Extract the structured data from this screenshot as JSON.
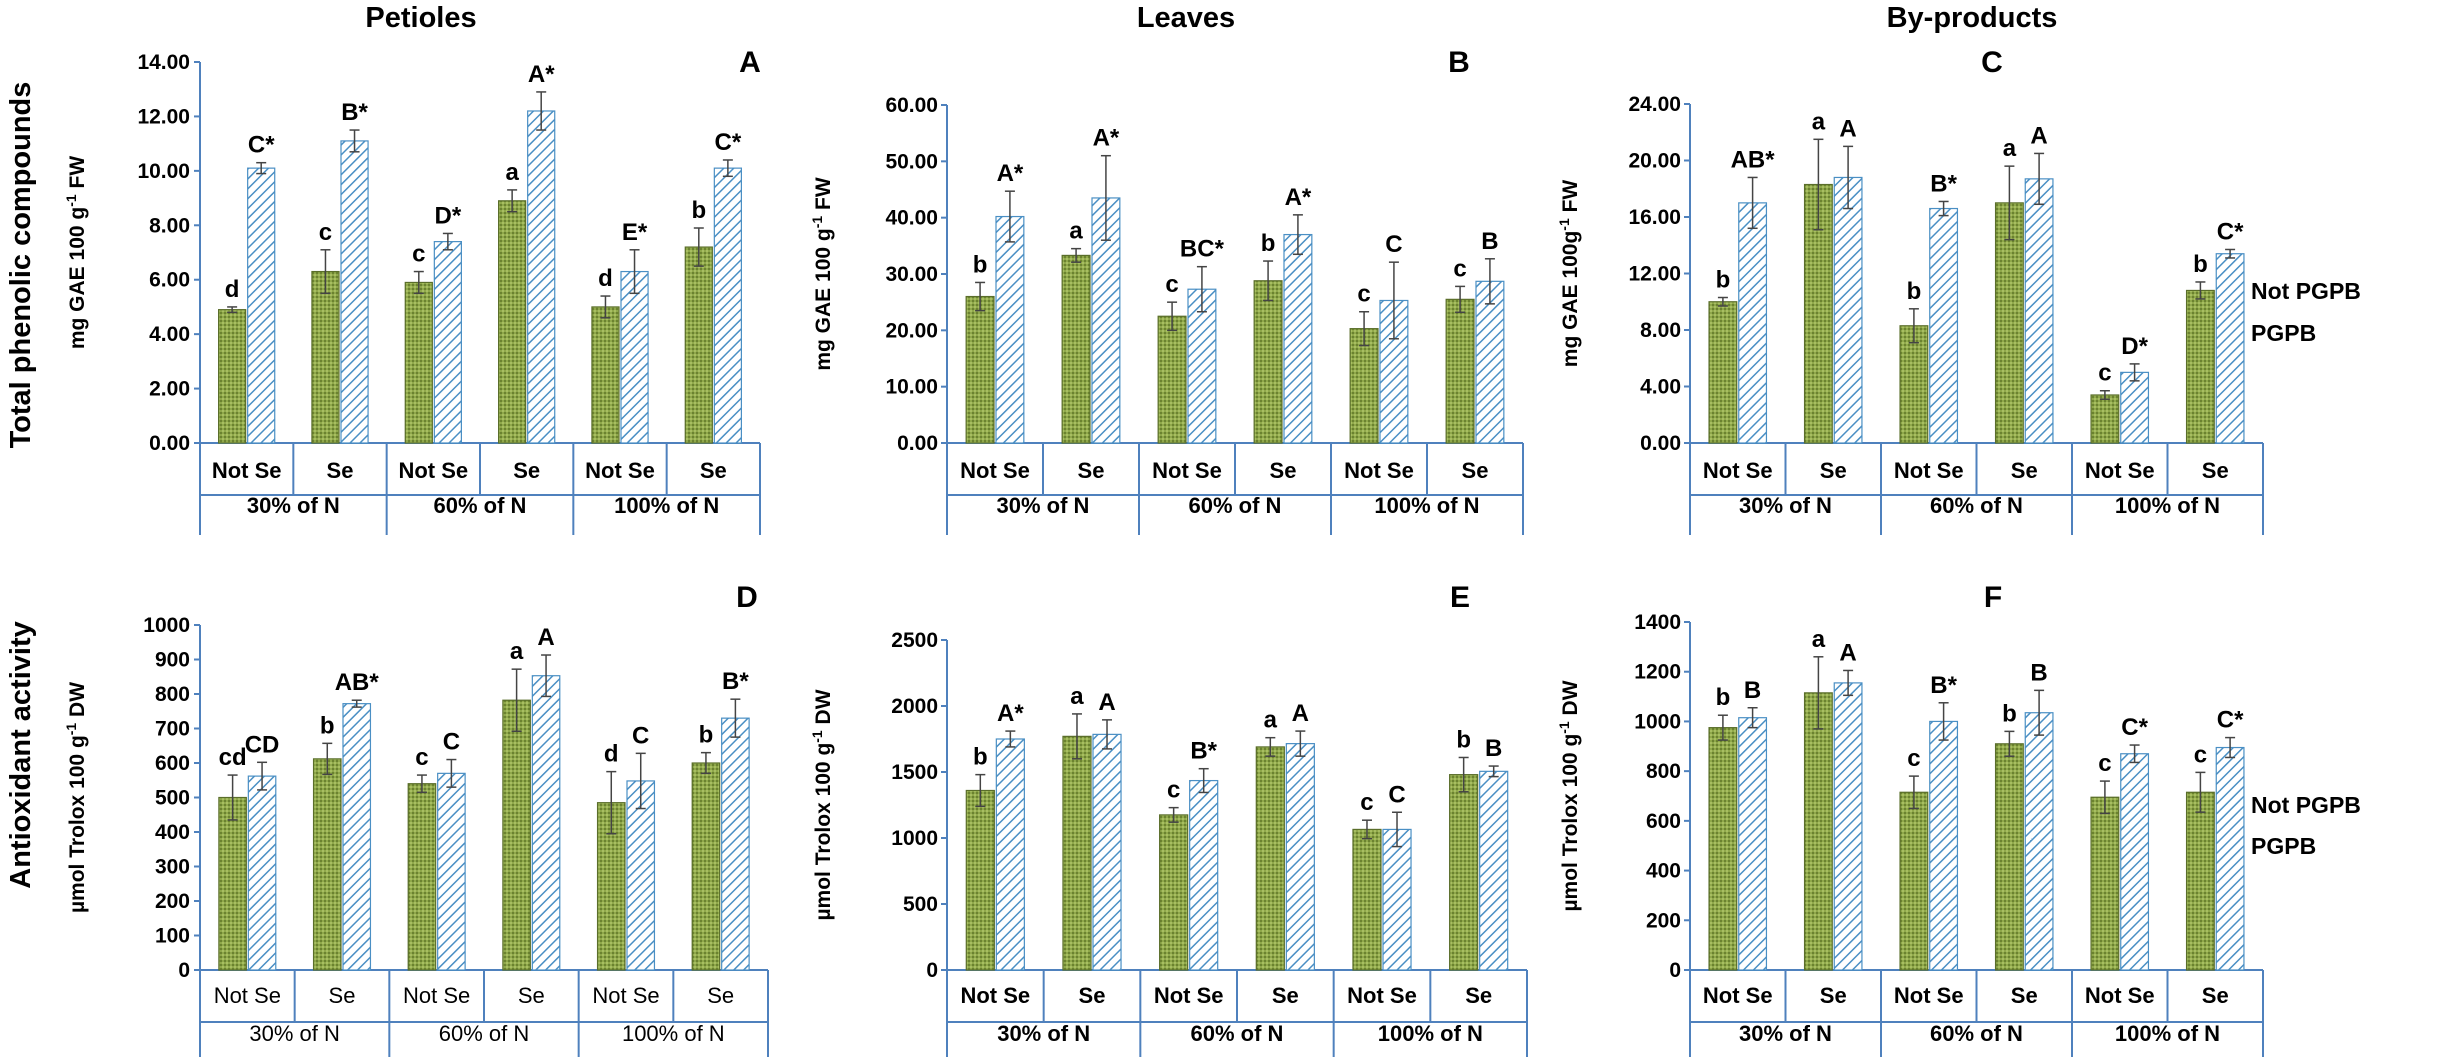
{
  "figure": {
    "column_titles": [
      "Petioles",
      "Leaves",
      "By-products"
    ],
    "row_titles": [
      "Total phenolic compounds",
      "Antioxidant activity"
    ],
    "colors": {
      "not_pgpb_fill": "#8fa84a",
      "not_pgpb_stroke": "#5a6e2a",
      "pgpb_fill": "#ffffff",
      "pgpb_stroke": "#4a8fc4",
      "axis": "#4f81bd"
    },
    "legends": [
      {
        "entries": [
          {
            "label": "Not PGPB",
            "pattern": "green-dots"
          },
          {
            "label": "PGPB",
            "pattern": "blue-hatch"
          }
        ]
      },
      {
        "entries": [
          {
            "label": "Not PGPB",
            "pattern": "green-dots"
          },
          {
            "label": "PGPB",
            "pattern": "blue-hatch"
          }
        ]
      }
    ]
  },
  "chart_data": [
    {
      "panel": "A",
      "type": "bar",
      "title": "Petioles",
      "ylabel_main": "mg GAE 100 g",
      "ylabel_sup": "-1",
      "ylabel_tail": " FW",
      "ylim": [
        0,
        14
      ],
      "yticks": [
        0,
        2,
        4,
        6,
        8,
        10,
        12,
        14
      ],
      "ytick_labels": [
        "0.00",
        "2.00",
        "4.00",
        "6.00",
        "8.00",
        "10.00",
        "12.00",
        "14.00"
      ],
      "categories": [
        "Not Se",
        "Se",
        "Not Se",
        "Se",
        "Not Se",
        "Se"
      ],
      "groups": [
        "30% of N",
        "60% of N",
        "100% of N"
      ],
      "series": [
        {
          "name": "Not PGPB",
          "values": [
            4.9,
            6.3,
            5.9,
            8.9,
            5.0,
            7.2
          ],
          "errors": [
            0.1,
            0.8,
            0.4,
            0.4,
            0.4,
            0.7
          ],
          "labels": [
            "d",
            "c",
            "c",
            "a",
            "d",
            "b"
          ]
        },
        {
          "name": "PGPB",
          "values": [
            10.1,
            11.1,
            7.4,
            12.2,
            6.3,
            10.1
          ],
          "errors": [
            0.2,
            0.4,
            0.3,
            0.7,
            0.8,
            0.3
          ],
          "labels": [
            "C*",
            "B*",
            "D*",
            "A*",
            "E*",
            "C*"
          ]
        }
      ]
    },
    {
      "panel": "B",
      "type": "bar",
      "title": "Leaves",
      "ylabel_main": "mg GAE 100 g",
      "ylabel_sup": "-1",
      "ylabel_tail": " FW",
      "ylim": [
        0,
        60
      ],
      "yticks": [
        0,
        10,
        20,
        30,
        40,
        50,
        60
      ],
      "ytick_labels": [
        "0.00",
        "10.00",
        "20.00",
        "30.00",
        "40.00",
        "50.00",
        "60.00"
      ],
      "categories": [
        "Not Se",
        "Se",
        "Not Se",
        "Se",
        "Not Se",
        "Se"
      ],
      "groups": [
        "30% of N",
        "60% of N",
        "100% of N"
      ],
      "series": [
        {
          "name": "Not PGPB",
          "values": [
            26.0,
            33.3,
            22.5,
            28.8,
            20.3,
            25.5
          ],
          "errors": [
            2.5,
            1.2,
            2.5,
            3.5,
            3.0,
            2.3
          ],
          "labels": [
            "b",
            "a",
            "c",
            "b",
            "c",
            "c"
          ]
        },
        {
          "name": "PGPB",
          "values": [
            40.2,
            43.5,
            27.3,
            37.0,
            25.3,
            28.7
          ],
          "errors": [
            4.5,
            7.5,
            4.0,
            3.5,
            6.8,
            4.0
          ],
          "labels": [
            "A*",
            "A*",
            "BC*",
            "A*",
            "C",
            "B"
          ]
        }
      ]
    },
    {
      "panel": "C",
      "type": "bar",
      "title": "By-products",
      "ylabel_main": "mg GAE 100g",
      "ylabel_sup": "-1",
      "ylabel_tail": " FW",
      "ylim": [
        0,
        24
      ],
      "yticks": [
        0,
        4,
        8,
        12,
        16,
        20,
        24
      ],
      "ytick_labels": [
        "0.00",
        "4.00",
        "8.00",
        "12.00",
        "16.00",
        "20.00",
        "24.00"
      ],
      "categories": [
        "Not Se",
        "Se",
        "Not Se",
        "Se",
        "Not Se",
        "Se"
      ],
      "groups": [
        "30% of N",
        "60% of N",
        "100% of N"
      ],
      "series": [
        {
          "name": "Not PGPB",
          "values": [
            10.0,
            18.3,
            8.3,
            17.0,
            3.4,
            10.8
          ],
          "errors": [
            0.3,
            3.2,
            1.2,
            2.6,
            0.3,
            0.6
          ],
          "labels": [
            "b",
            "a",
            "b",
            "a",
            "c",
            "b"
          ]
        },
        {
          "name": "PGPB",
          "values": [
            17.0,
            18.8,
            16.6,
            18.7,
            5.0,
            13.4
          ],
          "errors": [
            1.8,
            2.2,
            0.5,
            1.8,
            0.6,
            0.3
          ],
          "labels": [
            "AB*",
            "A",
            "B*",
            "A",
            "D*",
            "C*"
          ]
        }
      ]
    },
    {
      "panel": "D",
      "type": "bar",
      "title": "Petioles",
      "ylabel_main": "µmol Trolox 100 g",
      "ylabel_sup": "-1",
      "ylabel_tail": " DW",
      "ylim": [
        0,
        1000
      ],
      "yticks": [
        0,
        100,
        200,
        300,
        400,
        500,
        600,
        700,
        800,
        900,
        1000
      ],
      "ytick_labels": [
        "0",
        "100",
        "200",
        "300",
        "400",
        "500",
        "600",
        "700",
        "800",
        "900",
        "1000"
      ],
      "categories": [
        "Not Se",
        "Se",
        "Not Se",
        "Se",
        "Not Se",
        "Se"
      ],
      "groups": [
        "30% of N",
        "60% of N",
        "100% of N"
      ],
      "series": [
        {
          "name": "Not PGPB",
          "values": [
            500,
            612,
            540,
            782,
            485,
            600
          ],
          "errors": [
            65,
            45,
            25,
            90,
            90,
            30
          ],
          "labels": [
            "cd",
            "b",
            "c",
            "a",
            "d",
            "b"
          ]
        },
        {
          "name": "PGPB",
          "values": [
            562,
            772,
            570,
            853,
            548,
            730
          ],
          "errors": [
            40,
            10,
            40,
            60,
            80,
            55
          ],
          "labels": [
            "CD",
            "AB*",
            "C",
            "A",
            "C",
            "B*"
          ]
        }
      ]
    },
    {
      "panel": "E",
      "type": "bar",
      "title": "Leaves",
      "ylabel_main": "µmol Trolox 100 g",
      "ylabel_sup": "-1",
      "ylabel_tail": " DW",
      "ylim": [
        0,
        2500
      ],
      "yticks": [
        0,
        500,
        1000,
        1500,
        2000,
        2500
      ],
      "ytick_labels": [
        "0",
        "500",
        "1000",
        "1500",
        "2000",
        "2500"
      ],
      "categories": [
        "Not Se",
        "Se",
        "Not Se",
        "Se",
        "Not Se",
        "Se"
      ],
      "groups": [
        "30% of N",
        "60% of N",
        "100% of N"
      ],
      "series": [
        {
          "name": "Not PGPB",
          "values": [
            1360,
            1770,
            1175,
            1690,
            1065,
            1480
          ],
          "errors": [
            120,
            170,
            55,
            70,
            70,
            130
          ],
          "labels": [
            "b",
            "a",
            "c",
            "a",
            "c",
            "b"
          ]
        },
        {
          "name": "PGPB",
          "values": [
            1750,
            1785,
            1435,
            1715,
            1065,
            1505
          ],
          "errors": [
            60,
            110,
            90,
            95,
            130,
            40
          ],
          "labels": [
            "A*",
            "A",
            "B*",
            "A",
            "C",
            "B"
          ]
        }
      ]
    },
    {
      "panel": "F",
      "type": "bar",
      "title": "By-products",
      "ylabel_main": "µmol Trolox 100 g",
      "ylabel_sup": "-1",
      "ylabel_tail": " DW",
      "ylim": [
        0,
        1400
      ],
      "yticks": [
        0,
        200,
        400,
        600,
        800,
        1000,
        1200,
        1400
      ],
      "ytick_labels": [
        "0",
        "200",
        "400",
        "600",
        "800",
        "1000",
        "1200",
        "1400"
      ],
      "categories": [
        "Not Se",
        "Se",
        "Not Se",
        "Se",
        "Not Se",
        "Se"
      ],
      "groups": [
        "30% of N",
        "60% of N",
        "100% of N"
      ],
      "series": [
        {
          "name": "Not PGPB",
          "values": [
            975,
            1115,
            715,
            910,
            695,
            715
          ],
          "errors": [
            50,
            145,
            65,
            50,
            65,
            80
          ],
          "labels": [
            "b",
            "a",
            "c",
            "b",
            "c",
            "c"
          ]
        },
        {
          "name": "PGPB",
          "values": [
            1015,
            1155,
            1000,
            1035,
            870,
            895
          ],
          "errors": [
            40,
            50,
            75,
            90,
            35,
            40
          ],
          "labels": [
            "B",
            "A",
            "B*",
            "B",
            "C*",
            "C*"
          ]
        }
      ]
    }
  ]
}
